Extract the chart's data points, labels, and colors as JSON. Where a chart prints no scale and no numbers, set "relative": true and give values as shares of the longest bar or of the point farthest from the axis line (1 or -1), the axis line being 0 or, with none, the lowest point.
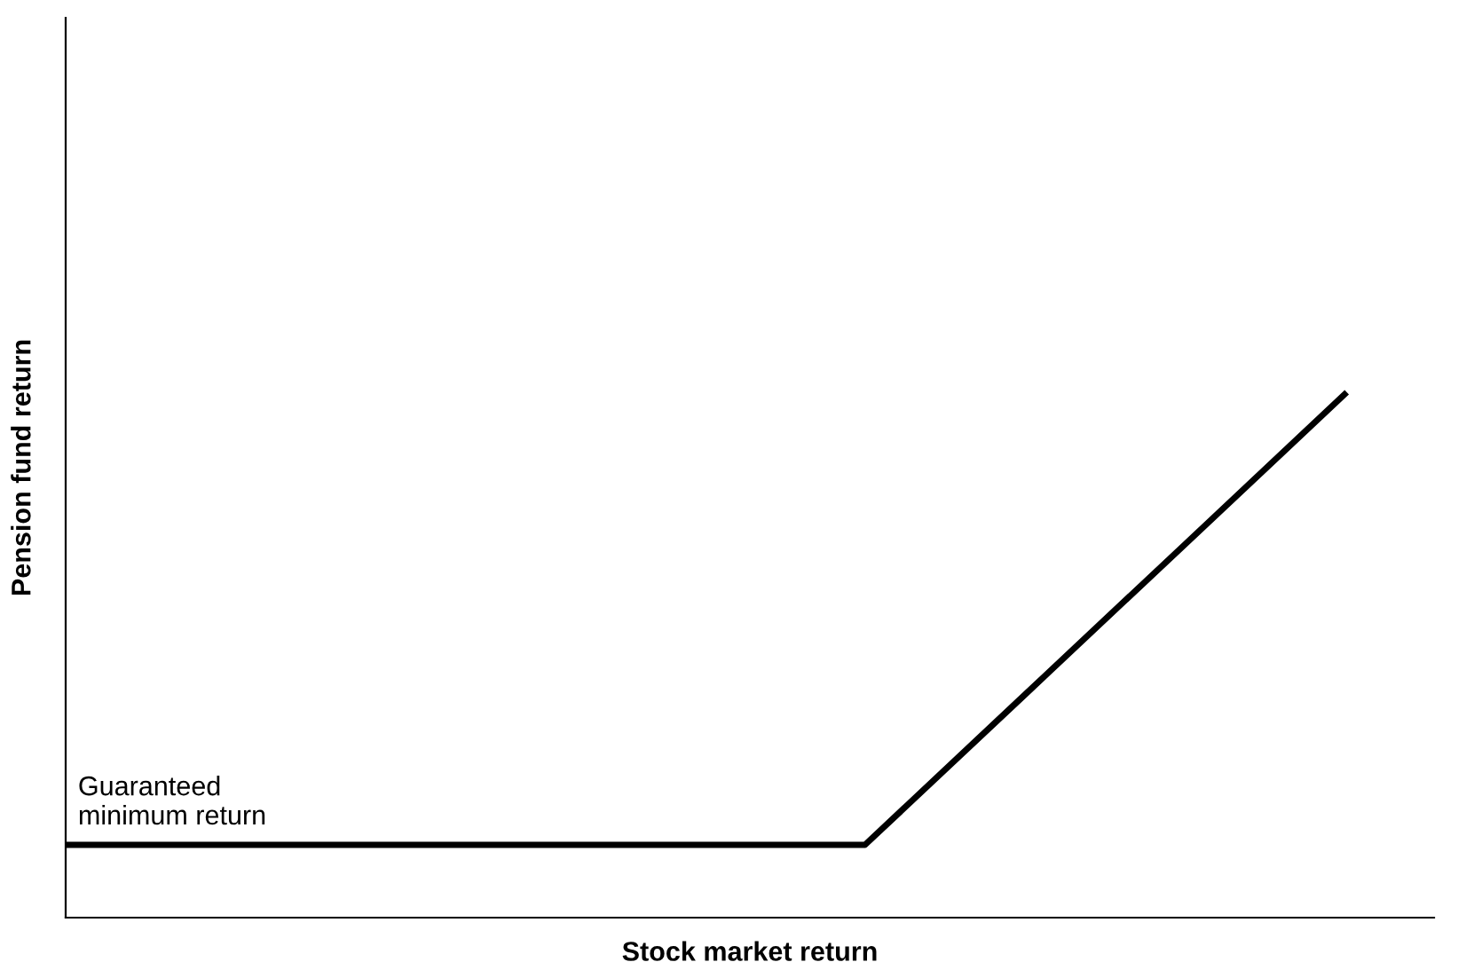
{
  "chart_data": {
    "type": "line",
    "relative": true,
    "xlabel": "Stock market return",
    "ylabel": "Pension fund return",
    "categories": [
      null,
      null,
      null,
      null,
      null,
      null,
      null,
      null,
      null
    ],
    "series": [
      {
        "color": "#000000",
        "values": [
          0.139,
          0.139,
          0.139,
          0.139,
          0.139,
          0.139,
          0.426,
          0.713,
          1
        ]
      }
    ],
    "annotations": [
      "Guaranteed\nminimum return"
    ],
    "grid": false,
    "legend": false,
    "marker": "none",
    "line_style": "solid"
  }
}
